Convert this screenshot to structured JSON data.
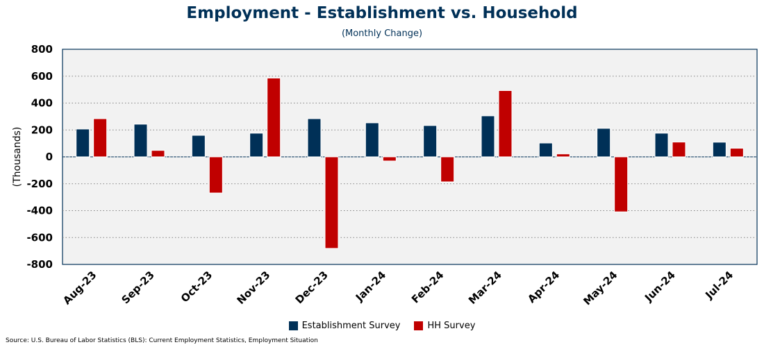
{
  "chart_data": {
    "type": "bar",
    "title": "Employment - Establishment vs. Household",
    "subtitle": "(Monthly Change)",
    "xlabel": "",
    "ylabel": "(Thousands)",
    "ylim": [
      -800,
      800
    ],
    "yticks": [
      800,
      600,
      400,
      200,
      0,
      -200,
      -400,
      -600,
      -800
    ],
    "grid": true,
    "legend_position": "bottom",
    "categories": [
      "Aug-23",
      "Sep-23",
      "Oct-23",
      "Nov-23",
      "Dec-23",
      "Jan-24",
      "Feb-24",
      "Mar-24",
      "Apr-24",
      "May-24",
      "Jun-24",
      "Jul-24"
    ],
    "series": [
      {
        "name": "Establishment Survey",
        "color": "#003057",
        "values": [
          207,
          243,
          160,
          176,
          284,
          253,
          233,
          305,
          103,
          212,
          176,
          109
        ]
      },
      {
        "name": "HH Survey",
        "color": "#C00000",
        "values": [
          284,
          48,
          -269,
          586,
          -681,
          -31,
          -186,
          493,
          22,
          -409,
          110,
          64
        ]
      }
    ],
    "source": "Source: U.S. Bureau of Labor Statistics (BLS): Current Employment Statistics, Employment Situation"
  }
}
